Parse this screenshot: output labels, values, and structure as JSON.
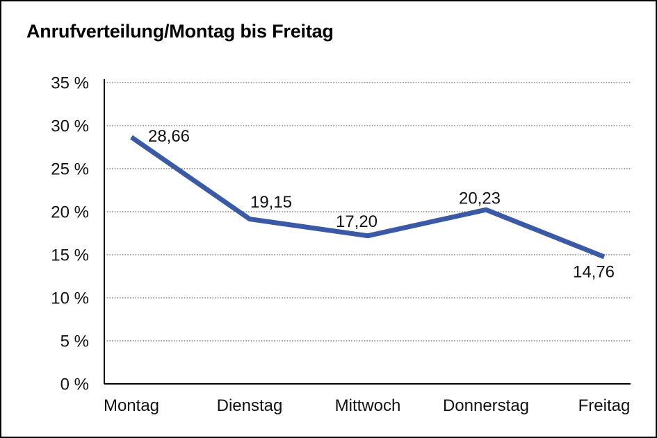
{
  "window": {
    "background": "#ffffff",
    "border_color": "#000000"
  },
  "chart_data": {
    "type": "line",
    "title": "Anrufverteilung/Montag bis Freitag",
    "categories": [
      "Montag",
      "Dienstag",
      "Mittwoch",
      "Donnerstag",
      "Freitag"
    ],
    "series": [
      {
        "name": "Anrufverteilung",
        "values": [
          28.66,
          19.15,
          17.2,
          20.23,
          14.76
        ]
      }
    ],
    "data_labels": [
      "28,66",
      "19,15",
      "17,20",
      "20,23",
      "14,76"
    ],
    "y_ticks": [
      {
        "value": 35,
        "label": "35 %"
      },
      {
        "value": 30,
        "label": "30 %"
      },
      {
        "value": 25,
        "label": "25 %"
      },
      {
        "value": 20,
        "label": "20 %"
      },
      {
        "value": 15,
        "label": "15 %"
      },
      {
        "value": 10,
        "label": "10 %"
      },
      {
        "value": 5,
        "label": "5 %"
      },
      {
        "value": 0,
        "label": "0 %"
      }
    ],
    "ylim": [
      0,
      35
    ],
    "xlabel": "",
    "ylabel": "",
    "grid": "horizontal-dotted",
    "legend": "none",
    "line_color": "#3A5AA5",
    "gridline_color": "#3a3a3a",
    "axis_color": "#000000"
  }
}
